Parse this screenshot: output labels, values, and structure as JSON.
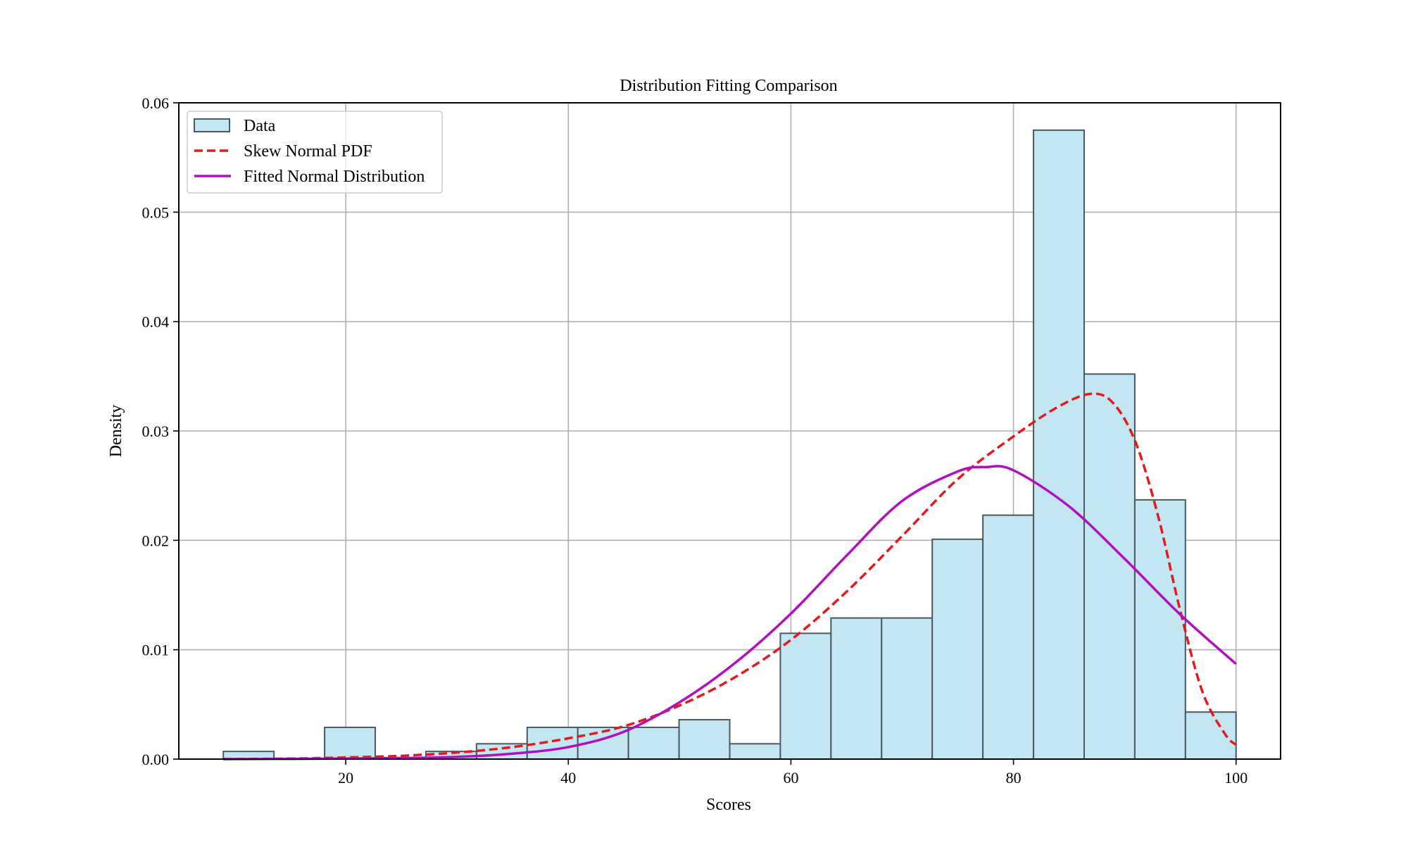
{
  "chart_data": {
    "type": "bar",
    "title": "Distribution Fitting Comparison",
    "xlabel": "Scores",
    "ylabel": "Density",
    "xlim": [
      5,
      104
    ],
    "ylim": [
      0,
      0.06
    ],
    "xticks": [
      20,
      40,
      60,
      80,
      100
    ],
    "yticks": [
      0.0,
      0.01,
      0.02,
      0.03,
      0.04,
      0.05,
      0.06
    ],
    "grid": true,
    "legend_position": "top-left",
    "histogram": {
      "name": "Data",
      "bin_edges": [
        9.0,
        13.55,
        18.1,
        22.65,
        27.2,
        31.75,
        36.3,
        40.85,
        45.4,
        49.95,
        54.5,
        59.05,
        63.6,
        68.15,
        72.7,
        77.25,
        81.8,
        86.35,
        90.9,
        95.45,
        100.0
      ],
      "values": [
        0.0007,
        0.0,
        0.0029,
        0.0,
        0.0007,
        0.0014,
        0.0029,
        0.0029,
        0.0029,
        0.0036,
        0.0014,
        0.0115,
        0.0129,
        0.0129,
        0.0201,
        0.0223,
        0.0575,
        0.0352,
        0.0237,
        0.0043
      ],
      "fill_color": "#c3e6f3",
      "edge_color": "#4a5a63"
    },
    "series": [
      {
        "name": "Skew Normal PDF",
        "style": "dashed",
        "color": "#e31a1c",
        "x": [
          9,
          15,
          20,
          25,
          30,
          35,
          40,
          45,
          50,
          55,
          60,
          65,
          70,
          75,
          80,
          84,
          87,
          89,
          91,
          93,
          95,
          97,
          99,
          100
        ],
        "y": [
          0.0,
          5e-05,
          0.00015,
          0.0003,
          0.0006,
          0.0011,
          0.0019,
          0.003,
          0.0049,
          0.0075,
          0.0109,
          0.0153,
          0.0204,
          0.0256,
          0.0295,
          0.0322,
          0.0334,
          0.0325,
          0.0289,
          0.0222,
          0.0135,
          0.0061,
          0.0023,
          0.0013
        ]
      },
      {
        "name": "Fitted Normal Distribution",
        "style": "solid",
        "color": "#b10fc0",
        "x": [
          9,
          15,
          20,
          25,
          30,
          35,
          40,
          45,
          50,
          55,
          60,
          65,
          70,
          75,
          77.5,
          80,
          85,
          90,
          95,
          100
        ],
        "y": [
          0.0,
          2e-05,
          5e-05,
          0.0001,
          0.0002,
          0.0005,
          0.0011,
          0.0025,
          0.0052,
          0.0088,
          0.0133,
          0.0186,
          0.0236,
          0.0263,
          0.0267,
          0.0264,
          0.0231,
          0.0183,
          0.0132,
          0.0087
        ]
      }
    ]
  }
}
